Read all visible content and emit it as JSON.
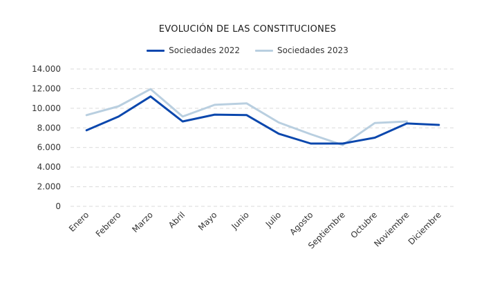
{
  "colors": {
    "series_2022": "#0a47ad",
    "series_2023": "#b9cfe0",
    "grid": "#d9d9d9",
    "text": "#333333"
  },
  "chart_data": {
    "type": "line",
    "title": "EVOLUCIÓN DE LAS CONSTITUCIONES",
    "xlabel": "",
    "ylabel": "",
    "categories": [
      "Enero",
      "Febrero",
      "Marzo",
      "Abril",
      "Mayo",
      "Junio",
      "Julio",
      "Agosto",
      "Septiembre",
      "Octubre",
      "Noviembre",
      "Diciembre"
    ],
    "y_ticks": [
      "0",
      "2.000",
      "4.000",
      "6.000",
      "8.000",
      "10.000",
      "12.000",
      "14.000"
    ],
    "ylim": [
      0,
      14000
    ],
    "grid": true,
    "legend_position": "top-center",
    "series": [
      {
        "name": "Sociedades 2022",
        "values": [
          7750,
          9150,
          11200,
          8650,
          9350,
          9300,
          7400,
          6400,
          6400,
          7000,
          8450,
          8300
        ]
      },
      {
        "name": "Sociedades 2023",
        "values": [
          9300,
          10200,
          11950,
          9150,
          10350,
          10500,
          8550,
          7350,
          6250,
          8500,
          8650,
          null
        ]
      }
    ]
  }
}
